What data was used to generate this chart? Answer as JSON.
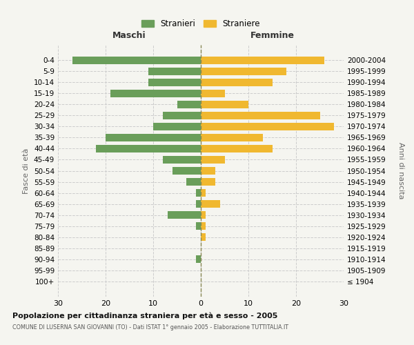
{
  "age_groups": [
    "100+",
    "95-99",
    "90-94",
    "85-89",
    "80-84",
    "75-79",
    "70-74",
    "65-69",
    "60-64",
    "55-59",
    "50-54",
    "45-49",
    "40-44",
    "35-39",
    "30-34",
    "25-29",
    "20-24",
    "15-19",
    "10-14",
    "5-9",
    "0-4"
  ],
  "birth_years": [
    "≤ 1904",
    "1905-1909",
    "1910-1914",
    "1915-1919",
    "1920-1924",
    "1925-1929",
    "1930-1934",
    "1935-1939",
    "1940-1944",
    "1945-1949",
    "1950-1954",
    "1955-1959",
    "1960-1964",
    "1965-1969",
    "1970-1974",
    "1975-1979",
    "1980-1984",
    "1985-1989",
    "1990-1994",
    "1995-1999",
    "2000-2004"
  ],
  "males": [
    0,
    0,
    1,
    0,
    0,
    1,
    7,
    1,
    1,
    3,
    6,
    8,
    22,
    20,
    10,
    8,
    5,
    19,
    11,
    11,
    27
  ],
  "females": [
    0,
    0,
    0,
    0,
    1,
    1,
    1,
    4,
    1,
    3,
    3,
    5,
    15,
    13,
    28,
    25,
    10,
    5,
    15,
    18,
    26
  ],
  "male_color": "#6a9e5a",
  "female_color": "#f0b830",
  "title_main": "Popolazione per cittadinanza straniera per età e sesso - 2005",
  "title_sub": "COMUNE DI LUSERNA SAN GIOVANNI (TO) - Dati ISTAT 1° gennaio 2005 - Elaborazione TUTTITALIA.IT",
  "xlabel_left": "Maschi",
  "xlabel_right": "Femmine",
  "ylabel_left": "Fasce di età",
  "ylabel_right": "Anni di nascita",
  "legend_male": "Stranieri",
  "legend_female": "Straniere",
  "xlim": 30,
  "background_color": "#f5f5f0",
  "grid_color": "#cccccc"
}
